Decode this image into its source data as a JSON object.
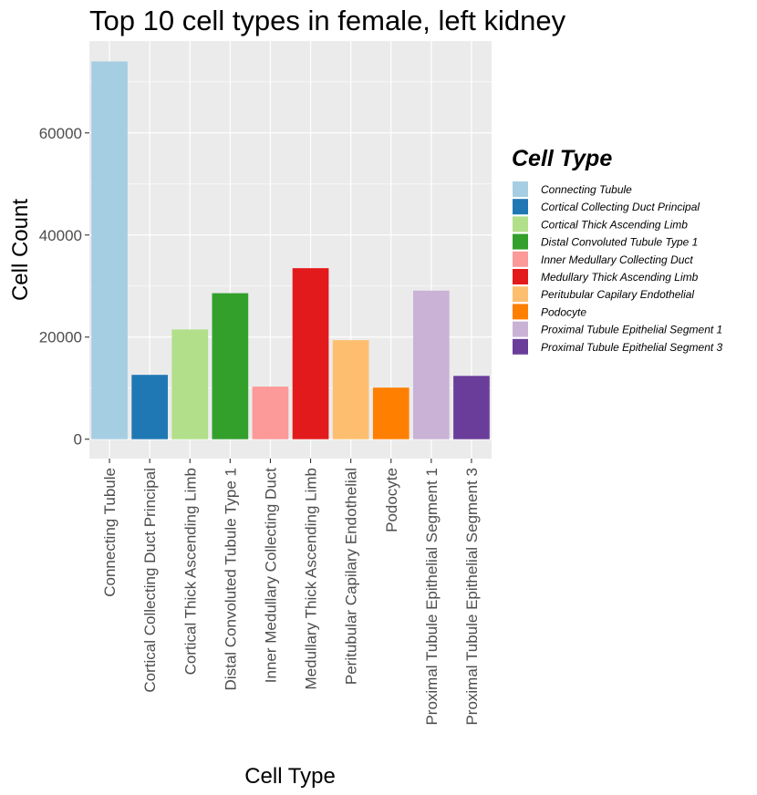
{
  "chart_data": {
    "type": "bar",
    "title": "Top 10 cell types in female, left kidney",
    "xlabel": "Cell Type",
    "ylabel": "Cell Count",
    "ylim": [
      -3800,
      78000
    ],
    "yticks": [
      0,
      20000,
      40000,
      60000
    ],
    "ytick_labels": [
      "0",
      "20000",
      "40000",
      "60000"
    ],
    "grid": true,
    "legend_title": "Cell Type",
    "legend_position": "right",
    "categories": [
      "Connecting Tubule",
      "Cortical Collecting Duct Principal",
      "Cortical Thick Ascending Limb",
      "Distal Convoluted Tubule Type 1",
      "Inner Medullary Collecting Duct",
      "Medullary Thick Ascending Limb",
      "Peritubular Capilary Endothelial",
      "Podocyte",
      "Proximal Tubule Epithelial Segment 1",
      "Proximal Tubule Epithelial Segment 3"
    ],
    "values": [
      74000,
      12600,
      21500,
      28600,
      10300,
      33500,
      19400,
      10100,
      29100,
      12400
    ],
    "colors": [
      "#a6cee3",
      "#1f78b4",
      "#b2df8a",
      "#33a02c",
      "#fb9a99",
      "#e31a1c",
      "#fdbf6f",
      "#ff7f00",
      "#cab2d6",
      "#6a3d9a"
    ]
  }
}
